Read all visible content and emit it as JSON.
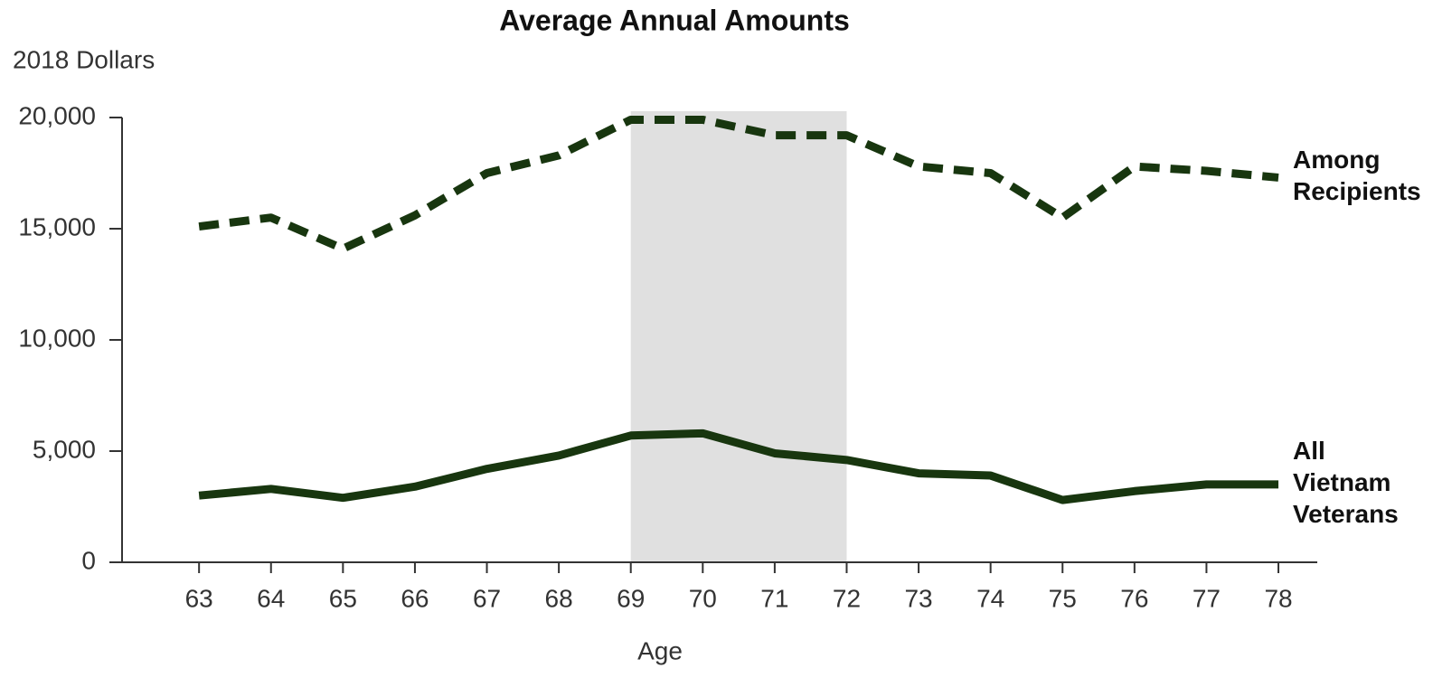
{
  "chart_data": {
    "type": "line",
    "title": "Average Annual Amounts",
    "ylabel": "2018 Dollars",
    "xlabel": "Age",
    "x": [
      63,
      64,
      65,
      66,
      67,
      68,
      69,
      70,
      71,
      72,
      73,
      74,
      75,
      76,
      77,
      78
    ],
    "series": [
      {
        "name": "Among Recipients",
        "color": "#18360f",
        "line_style": "dashed",
        "values": [
          15100,
          15500,
          14100,
          15600,
          17500,
          18300,
          19900,
          19900,
          19200,
          19200,
          17800,
          17500,
          15500,
          17800,
          17600,
          17300
        ]
      },
      {
        "name": "All Vietnam Veterans",
        "color": "#18360f",
        "line_style": "solid",
        "values": [
          3000,
          3300,
          2900,
          3400,
          4200,
          4800,
          5700,
          5800,
          4900,
          4600,
          4000,
          3900,
          2800,
          3200,
          3500,
          3500
        ]
      }
    ],
    "highlight": [
      69,
      72
    ],
    "highlight_color": "#e0e0e0",
    "xlim": [
      61.93,
      78.54
    ],
    "xticks": [
      63,
      64,
      65,
      66,
      67,
      68,
      69,
      70,
      71,
      72,
      73,
      74,
      75,
      76,
      77,
      78
    ],
    "ylim": [
      0,
      20000
    ],
    "yticks": [
      0,
      {
        "value": 5000,
        "label": "5,000"
      },
      {
        "value": 10000,
        "label": "10,000"
      },
      {
        "value": 15000,
        "label": "15,000"
      },
      {
        "value": 20000,
        "label": "20,000"
      }
    ],
    "grid": false
  }
}
